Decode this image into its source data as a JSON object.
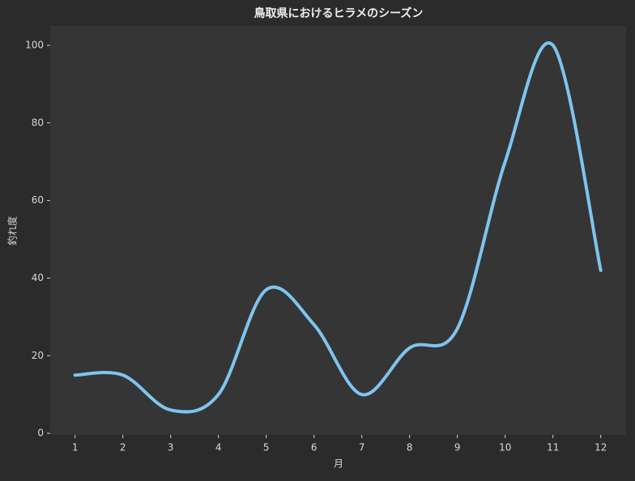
{
  "chart_data": {
    "type": "line",
    "title": "鳥取県におけるヒラメのシーズン",
    "x_label": "月",
    "y_label": "釣れ度",
    "x": [
      1,
      2,
      3,
      4,
      5,
      6,
      7,
      8,
      9,
      10,
      11,
      12
    ],
    "series": [
      {
        "name": "釣れ度",
        "color": "#7ec4f0",
        "values": [
          15,
          15,
          6,
          10,
          37,
          28,
          10,
          22,
          27,
          70,
          100,
          42
        ]
      }
    ],
    "xlim": [
      0.48,
      12.53
    ],
    "xticks": [
      1,
      2,
      3,
      4,
      5,
      6,
      7,
      8,
      9,
      10,
      11,
      12
    ],
    "ylim": [
      -0.4,
      105
    ],
    "yticks": [
      0,
      20,
      40,
      60,
      80,
      100
    ]
  }
}
